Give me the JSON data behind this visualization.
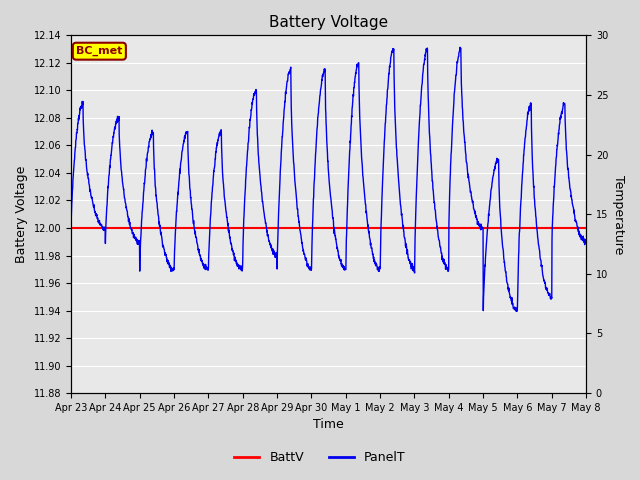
{
  "title": "Battery Voltage",
  "xlabel": "Time",
  "ylabel_left": "Battery Voltage",
  "ylabel_right": "Temperature",
  "ylim_left": [
    11.88,
    12.14
  ],
  "ylim_right": [
    0,
    30
  ],
  "yticks_left": [
    11.88,
    11.9,
    11.92,
    11.94,
    11.96,
    11.98,
    12.0,
    12.02,
    12.04,
    12.06,
    12.08,
    12.1,
    12.12,
    12.14
  ],
  "yticks_right": [
    0,
    5,
    10,
    15,
    20,
    25,
    30
  ],
  "xtick_labels": [
    "Apr 23",
    "Apr 24",
    "Apr 25",
    "Apr 26",
    "Apr 27",
    "Apr 28",
    "Apr 29",
    "Apr 30",
    "May 1",
    "May 2",
    "May 3",
    "May 4",
    "May 5",
    "May 6",
    "May 7",
    "May 8"
  ],
  "battv_value": 12.0,
  "background_color": "#d8d8d8",
  "plot_bg_color": "#e8e8e8",
  "grid_color": "#ffffff",
  "battv_color": "#ff0000",
  "panelt_color": "#0000ee",
  "legend_label1": "BattV",
  "legend_label2": "PanelT",
  "annotation_text": "BC_met",
  "annotation_bg": "#ffff00",
  "annotation_border": "#8b0000",
  "num_days": 15,
  "points_per_day": 144
}
